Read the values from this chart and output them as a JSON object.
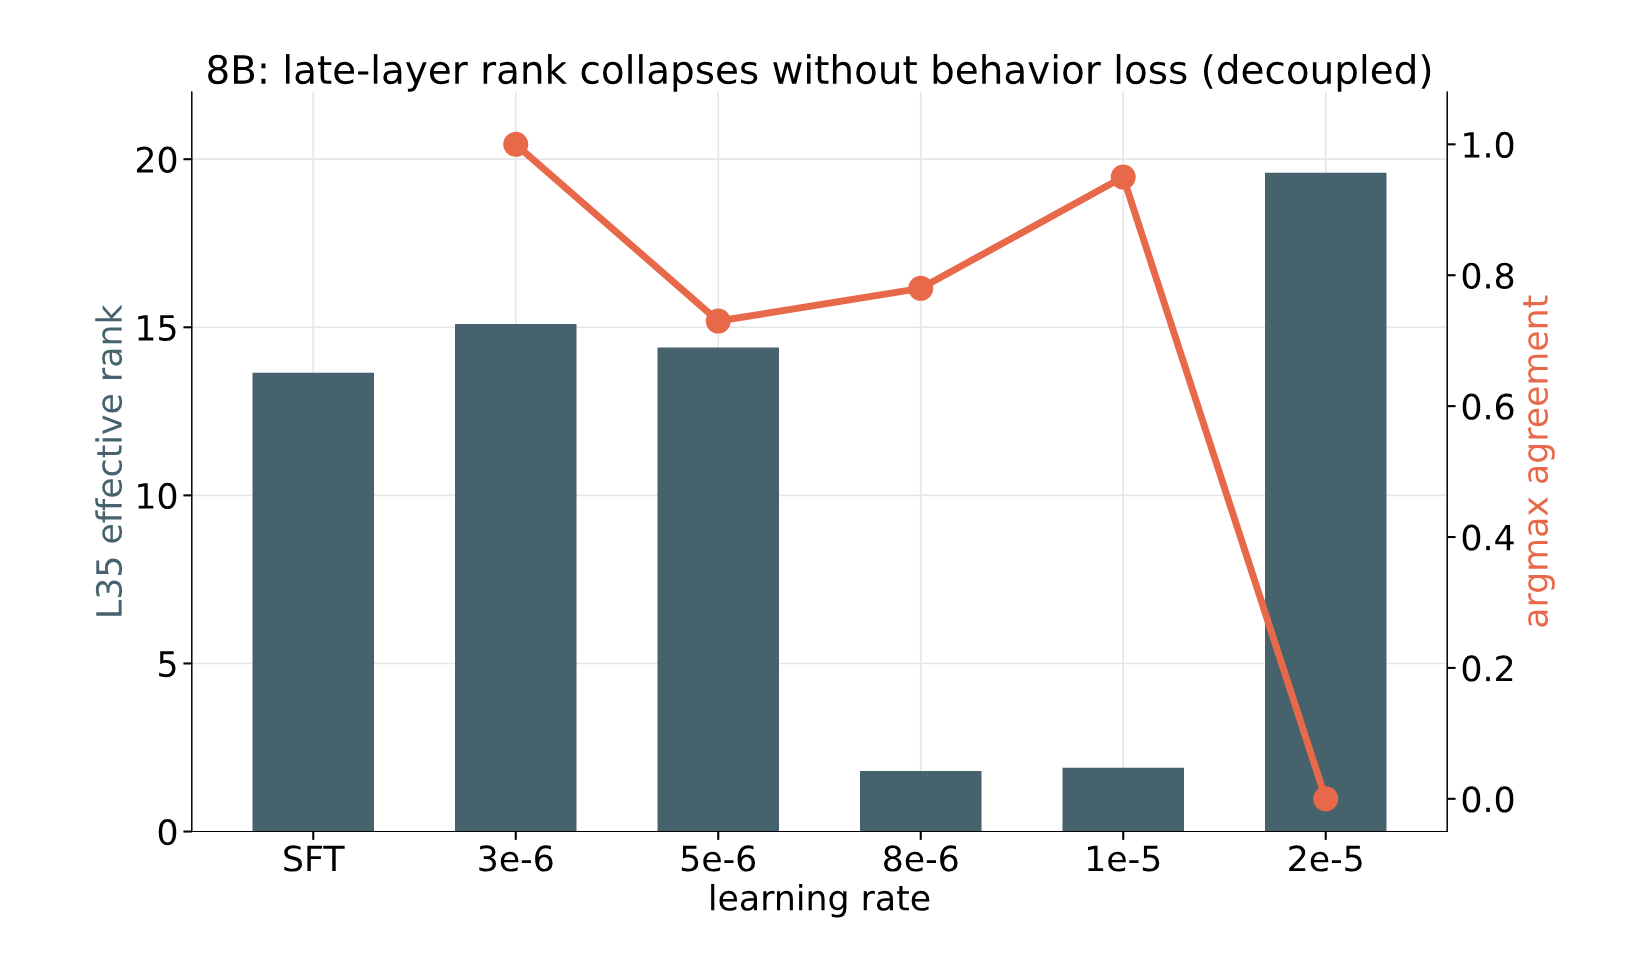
{
  "chart_data": {
    "type": "bar",
    "title": "8B: late-layer rank collapses without behavior loss (decoupled)",
    "xlabel": "learning rate",
    "ylabel": "L35 effective rank",
    "y2label": "argmax agreement",
    "categories": [
      "SFT",
      "3e-6",
      "5e-6",
      "8e-6",
      "1e-5",
      "2e-5"
    ],
    "series": [
      {
        "color": "#46626d",
        "values": [
          13.65,
          15.1,
          14.4,
          1.8,
          1.9,
          19.6
        ]
      },
      {
        "type": "line",
        "axis": "y2",
        "color": "#e8694a",
        "marker": "circle",
        "values": [
          null,
          1.0,
          0.73,
          0.78,
          0.95,
          0.0
        ]
      }
    ],
    "ylim": [
      0,
      22
    ],
    "yticks": [
      0,
      5,
      10,
      15,
      20
    ],
    "y2lim": [
      -0.05,
      1.08
    ],
    "y2ticks": [
      {
        "value": 0,
        "label": "0.0"
      },
      0.2,
      0.4,
      0.6,
      0.8,
      {
        "value": 1,
        "label": "1.0"
      }
    ],
    "grid": true
  }
}
